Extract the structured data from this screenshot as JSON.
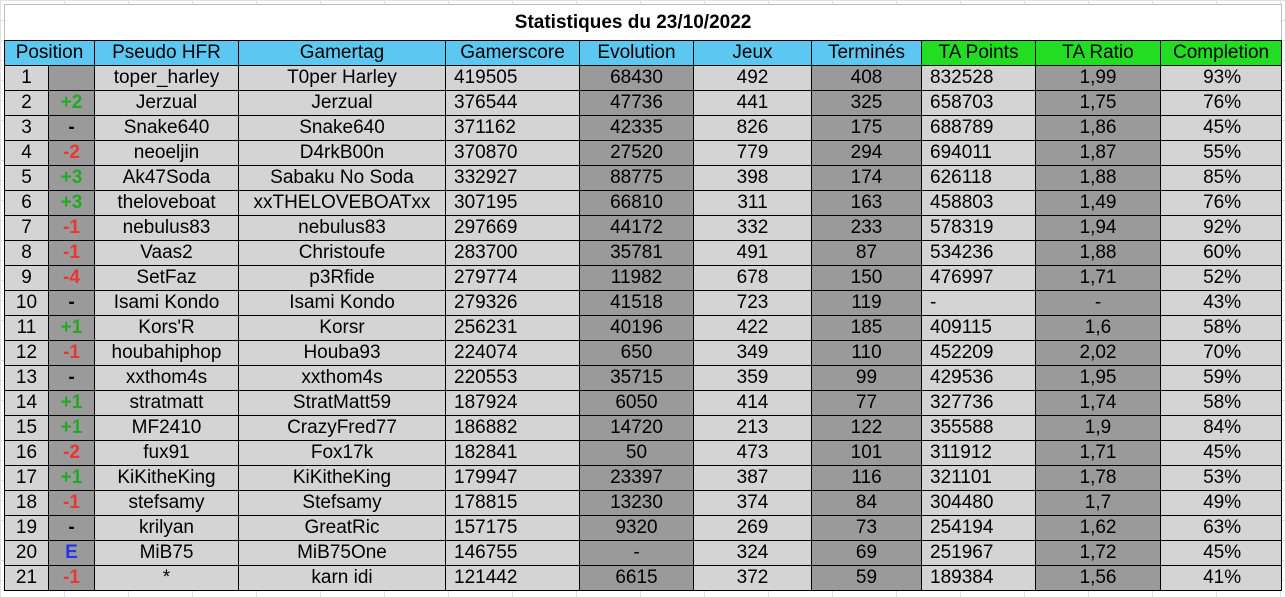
{
  "title": "Statistiques du 23/10/2022",
  "colors": {
    "header_blue": "#5cc8f2",
    "header_green": "#22dd22",
    "cell_light": "#d4d4d4",
    "cell_dark": "#9a9a9a",
    "up": "#22aa22",
    "down": "#ee3333",
    "same": "#000000",
    "entry": "#2233ee"
  },
  "headers": [
    "Position",
    "Pseudo HFR",
    "Gamertag",
    "Gamerscore",
    "Evolution",
    "Jeux",
    "Terminés",
    "TA Points",
    "TA Ratio",
    "Completion"
  ],
  "rows": [
    {
      "pos": "1",
      "chg": "",
      "chg_color": "same",
      "pseudo": "toper_harley",
      "gamertag": "T0per Harley",
      "gamerscore": "419505",
      "evolution": "68430",
      "jeux": "492",
      "termines": "408",
      "ta_points": "832528",
      "ta_ratio": "1,99",
      "completion": "93%"
    },
    {
      "pos": "2",
      "chg": "+2",
      "chg_color": "up",
      "pseudo": "Jerzual",
      "gamertag": "Jerzual",
      "gamerscore": "376544",
      "evolution": "47736",
      "jeux": "441",
      "termines": "325",
      "ta_points": "658703",
      "ta_ratio": "1,75",
      "completion": "76%"
    },
    {
      "pos": "3",
      "chg": "-",
      "chg_color": "same",
      "pseudo": "Snake640",
      "gamertag": "Snake640",
      "gamerscore": "371162",
      "evolution": "42335",
      "jeux": "826",
      "termines": "175",
      "ta_points": "688789",
      "ta_ratio": "1,86",
      "completion": "45%"
    },
    {
      "pos": "4",
      "chg": "-2",
      "chg_color": "down",
      "pseudo": "neoeljin",
      "gamertag": "D4rkB00n",
      "gamerscore": "370870",
      "evolution": "27520",
      "jeux": "779",
      "termines": "294",
      "ta_points": "694011",
      "ta_ratio": "1,87",
      "completion": "55%"
    },
    {
      "pos": "5",
      "chg": "+3",
      "chg_color": "up",
      "pseudo": "Ak47Soda",
      "gamertag": "Sabaku No Soda",
      "gamerscore": "332927",
      "evolution": "88775",
      "jeux": "398",
      "termines": "174",
      "ta_points": "626118",
      "ta_ratio": "1,88",
      "completion": "85%"
    },
    {
      "pos": "6",
      "chg": "+3",
      "chg_color": "up",
      "pseudo": "theloveboat",
      "gamertag": "xxTHELOVEBOATxx",
      "gamerscore": "307195",
      "evolution": "66810",
      "jeux": "311",
      "termines": "163",
      "ta_points": "458803",
      "ta_ratio": "1,49",
      "completion": "76%"
    },
    {
      "pos": "7",
      "chg": "-1",
      "chg_color": "down",
      "pseudo": "nebulus83",
      "gamertag": "nebulus83",
      "gamerscore": "297669",
      "evolution": "44172",
      "jeux": "332",
      "termines": "233",
      "ta_points": "578319",
      "ta_ratio": "1,94",
      "completion": "92%"
    },
    {
      "pos": "8",
      "chg": "-1",
      "chg_color": "down",
      "pseudo": "Vaas2",
      "gamertag": "Christoufe",
      "gamerscore": "283700",
      "evolution": "35781",
      "jeux": "491",
      "termines": "87",
      "ta_points": "534236",
      "ta_ratio": "1,88",
      "completion": "60%"
    },
    {
      "pos": "9",
      "chg": "-4",
      "chg_color": "down",
      "pseudo": "SetFaz",
      "gamertag": "p3Rfide",
      "gamerscore": "279774",
      "evolution": "11982",
      "jeux": "678",
      "termines": "150",
      "ta_points": "476997",
      "ta_ratio": "1,71",
      "completion": "52%"
    },
    {
      "pos": "10",
      "chg": "-",
      "chg_color": "same",
      "pseudo": "Isami Kondo",
      "gamertag": "Isami Kondo",
      "gamerscore": "279326",
      "evolution": "41518",
      "jeux": "723",
      "termines": "119",
      "ta_points": "-",
      "ta_ratio": "-",
      "completion": "43%"
    },
    {
      "pos": "11",
      "chg": "+1",
      "chg_color": "up",
      "pseudo": "Kors'R",
      "gamertag": "Korsr",
      "gamerscore": "256231",
      "evolution": "40196",
      "jeux": "422",
      "termines": "185",
      "ta_points": "409115",
      "ta_ratio": "1,6",
      "completion": "58%"
    },
    {
      "pos": "12",
      "chg": "-1",
      "chg_color": "down",
      "pseudo": "houbahiphop",
      "gamertag": "Houba93",
      "gamerscore": "224074",
      "evolution": "650",
      "jeux": "349",
      "termines": "110",
      "ta_points": "452209",
      "ta_ratio": "2,02",
      "completion": "70%"
    },
    {
      "pos": "13",
      "chg": "-",
      "chg_color": "same",
      "pseudo": "xxthom4s",
      "gamertag": "xxthom4s",
      "gamerscore": "220553",
      "evolution": "35715",
      "jeux": "359",
      "termines": "99",
      "ta_points": "429536",
      "ta_ratio": "1,95",
      "completion": "59%"
    },
    {
      "pos": "14",
      "chg": "+1",
      "chg_color": "up",
      "pseudo": "stratmatt",
      "gamertag": "StratMatt59",
      "gamerscore": "187924",
      "evolution": "6050",
      "jeux": "414",
      "termines": "77",
      "ta_points": "327736",
      "ta_ratio": "1,74",
      "completion": "58%"
    },
    {
      "pos": "15",
      "chg": "+1",
      "chg_color": "up",
      "pseudo": "MF2410",
      "gamertag": "CrazyFred77",
      "gamerscore": "186882",
      "evolution": "14720",
      "jeux": "213",
      "termines": "122",
      "ta_points": "355588",
      "ta_ratio": "1,9",
      "completion": "84%"
    },
    {
      "pos": "16",
      "chg": "-2",
      "chg_color": "down",
      "pseudo": "fux91",
      "gamertag": "Fox17k",
      "gamerscore": "182841",
      "evolution": "50",
      "jeux": "473",
      "termines": "101",
      "ta_points": "311912",
      "ta_ratio": "1,71",
      "completion": "45%"
    },
    {
      "pos": "17",
      "chg": "+1",
      "chg_color": "up",
      "pseudo": "KiKitheKing",
      "gamertag": "KiKitheKing",
      "gamerscore": "179947",
      "evolution": "23397",
      "jeux": "387",
      "termines": "116",
      "ta_points": "321101",
      "ta_ratio": "1,78",
      "completion": "53%"
    },
    {
      "pos": "18",
      "chg": "-1",
      "chg_color": "down",
      "pseudo": "stefsamy",
      "gamertag": "Stefsamy",
      "gamerscore": "178815",
      "evolution": "13230",
      "jeux": "374",
      "termines": "84",
      "ta_points": "304480",
      "ta_ratio": "1,7",
      "completion": "49%"
    },
    {
      "pos": "19",
      "chg": "-",
      "chg_color": "same",
      "pseudo": "krilyan",
      "gamertag": "GreatRic",
      "gamerscore": "157175",
      "evolution": "9320",
      "jeux": "269",
      "termines": "73",
      "ta_points": "254194",
      "ta_ratio": "1,62",
      "completion": "63%"
    },
    {
      "pos": "20",
      "chg": "E",
      "chg_color": "entry",
      "pseudo": "MiB75",
      "gamertag": "MiB75One",
      "gamerscore": "146755",
      "evolution": "-",
      "jeux": "324",
      "termines": "69",
      "ta_points": "251967",
      "ta_ratio": "1,72",
      "completion": "45%"
    },
    {
      "pos": "21",
      "chg": "-1",
      "chg_color": "down",
      "pseudo": "*",
      "gamertag": "karn idi",
      "gamerscore": "121442",
      "evolution": "6615",
      "jeux": "372",
      "termines": "59",
      "ta_points": "189384",
      "ta_ratio": "1,56",
      "completion": "41%"
    }
  ]
}
